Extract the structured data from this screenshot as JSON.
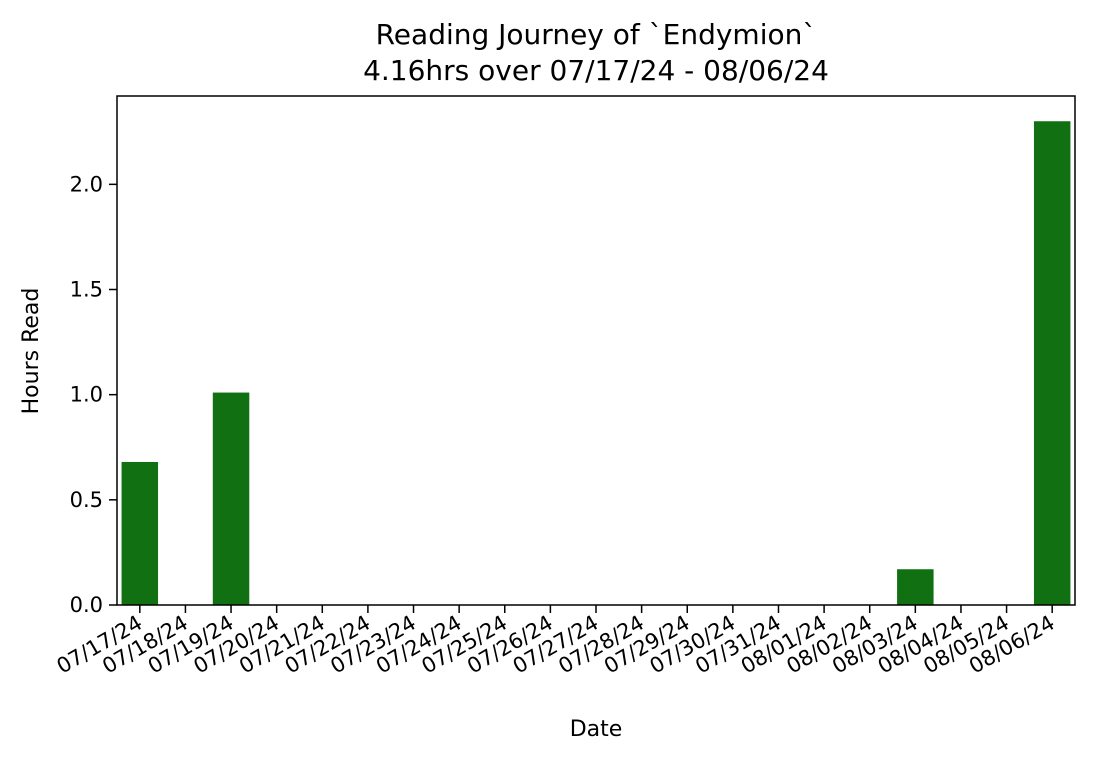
{
  "chart_data": {
    "type": "bar",
    "title": "Reading Journey of `Endymion`",
    "subtitle": "4.16hrs over 07/17/24 - 08/06/24",
    "xlabel": "Date",
    "ylabel": "Hours Read",
    "categories": [
      "07/17/24",
      "07/18/24",
      "07/19/24",
      "07/20/24",
      "07/21/24",
      "07/22/24",
      "07/23/24",
      "07/24/24",
      "07/25/24",
      "07/26/24",
      "07/27/24",
      "07/28/24",
      "07/29/24",
      "07/30/24",
      "07/31/24",
      "08/01/24",
      "08/02/24",
      "08/03/24",
      "08/04/24",
      "08/05/24",
      "08/06/24"
    ],
    "values": [
      0.68,
      0,
      1.01,
      0,
      0,
      0,
      0,
      0,
      0,
      0,
      0,
      0,
      0,
      0,
      0,
      0,
      0,
      0.17,
      0,
      0,
      2.3
    ],
    "ylim": [
      0,
      2.42
    ],
    "yticks": [
      0.0,
      0.5,
      1.0,
      1.5,
      2.0
    ],
    "ytick_labels": [
      "0.0",
      "0.5",
      "1.0",
      "1.5",
      "2.0"
    ],
    "bar_color": "#117011",
    "grid": false,
    "legend": false
  }
}
